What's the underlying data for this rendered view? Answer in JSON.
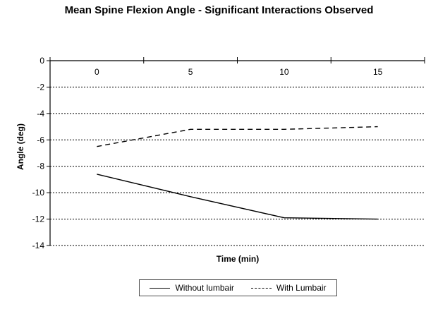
{
  "chart": {
    "title": "Mean Spine Flexion Angle - Significant Interactions Observed",
    "y_axis_label": "Angle (deg)",
    "x_axis_label": "Time (min)"
  },
  "legend": {
    "items": [
      {
        "label": "Without lumbair",
        "style": "solid"
      },
      {
        "label": "With Lumbair",
        "style": "dashed"
      }
    ]
  },
  "chart_data": {
    "type": "line",
    "title": "Mean Spine Flexion Angle - Significant Interactions Observed",
    "xlabel": "Time (min)",
    "ylabel": "Angle (deg)",
    "categories": [
      "0",
      "5",
      "10",
      "15"
    ],
    "x": [
      0,
      5,
      10,
      15
    ],
    "series": [
      {
        "name": "Without lumbair",
        "line_style": "solid",
        "color": "#000000",
        "values": [
          -8.6,
          -10.3,
          -11.9,
          -12.0
        ]
      },
      {
        "name": "With Lumbair",
        "line_style": "dashed",
        "color": "#000000",
        "values": [
          -6.5,
          -5.2,
          -5.2,
          -5.0
        ]
      }
    ],
    "ylim": [
      -14,
      0
    ],
    "y_ticks": [
      0,
      -2,
      -4,
      -6,
      -8,
      -10,
      -12,
      -14
    ],
    "grid": "horizontal-dashed",
    "legend_position": "bottom"
  },
  "colors": {
    "axis": "#000000",
    "grid": "#000000",
    "series": "#000000",
    "background": "#ffffff",
    "legend_border": "#4d4d4d"
  }
}
